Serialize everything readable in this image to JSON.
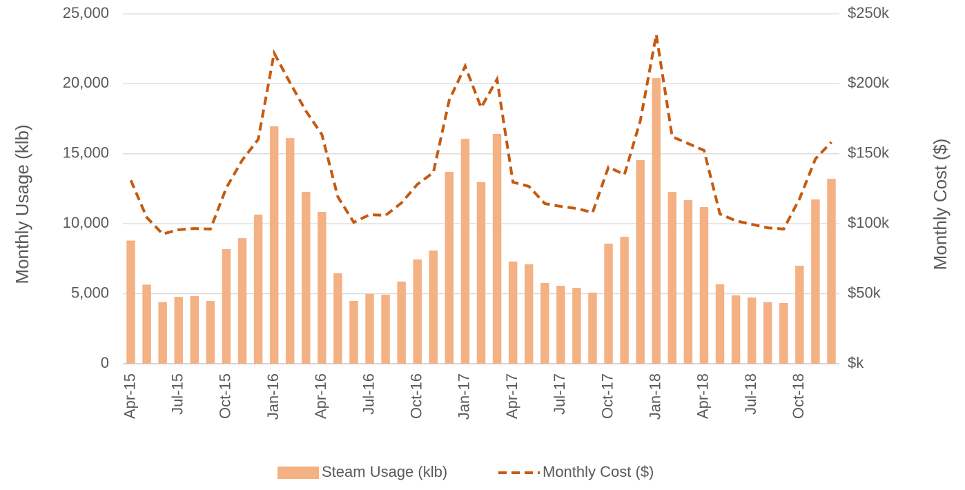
{
  "chart_data": {
    "type": "bar",
    "y_axis_label": "Monthly Usage (klb)",
    "y2_axis_label": "Monthly Cost ($)",
    "categories": [
      "Apr-15",
      null,
      null,
      "Jul-15",
      null,
      null,
      "Oct-15",
      null,
      null,
      "Jan-16",
      null,
      null,
      "Apr-16",
      null,
      null,
      "Jul-16",
      null,
      null,
      "Oct-16",
      null,
      null,
      "Jan-17",
      null,
      null,
      "Apr-17",
      null,
      null,
      "Jul-17",
      null,
      null,
      "Oct-17",
      null,
      null,
      "Jan-18",
      null,
      null,
      "Apr-18",
      null,
      null,
      "Jul-18",
      null,
      null,
      "Oct-18",
      null,
      null
    ],
    "series": [
      {
        "name": "Steam Usage (klb)",
        "type": "bar",
        "color": "#f4b183",
        "values": [
          8800,
          5650,
          4400,
          4780,
          4830,
          4490,
          8190,
          8970,
          10650,
          16960,
          16120,
          12280,
          10850,
          6460,
          4490,
          4980,
          4930,
          5870,
          7450,
          8090,
          13710,
          16070,
          12970,
          16420,
          7300,
          7100,
          5770,
          5570,
          5420,
          5080,
          8580,
          9070,
          14550,
          20410,
          12280,
          11690,
          11190,
          5670,
          4880,
          4730,
          4390,
          4340,
          7000,
          11740,
          13210
        ]
      },
      {
        "name": "Monthly Cost ($)",
        "type": "line",
        "axis": "y2",
        "dashed": true,
        "color": "#c55a11",
        "values": [
          131000,
          104500,
          92700,
          95700,
          96600,
          96200,
          125700,
          145500,
          160300,
          221900,
          200700,
          180500,
          163700,
          119300,
          101000,
          106500,
          106000,
          114900,
          128200,
          136600,
          188400,
          212600,
          183000,
          203200,
          129700,
          126700,
          114400,
          112400,
          110900,
          108000,
          140500,
          135100,
          173600,
          235200,
          162200,
          157300,
          152400,
          107000,
          102100,
          99600,
          97100,
          96200,
          117900,
          146400,
          158300
        ]
      }
    ],
    "ylim": [
      0,
      25000
    ],
    "yticks": [
      0,
      {
        "value": 5000,
        "label": "5,000"
      },
      {
        "value": 10000,
        "label": "10,000"
      },
      {
        "value": 15000,
        "label": "15,000"
      },
      {
        "value": 20000,
        "label": "20,000"
      },
      {
        "value": 25000,
        "label": "25,000"
      }
    ],
    "y2lim": [
      0,
      250000
    ],
    "y2ticks": [
      {
        "value": 0,
        "label": "$k"
      },
      {
        "value": 50000,
        "label": "$50k"
      },
      {
        "value": 100000,
        "label": "$100k"
      },
      {
        "value": 150000,
        "label": "$150k"
      },
      {
        "value": 200000,
        "label": "$200k"
      },
      {
        "value": 250000,
        "label": "$250k"
      }
    ],
    "grid": true,
    "legend": "bottom"
  }
}
